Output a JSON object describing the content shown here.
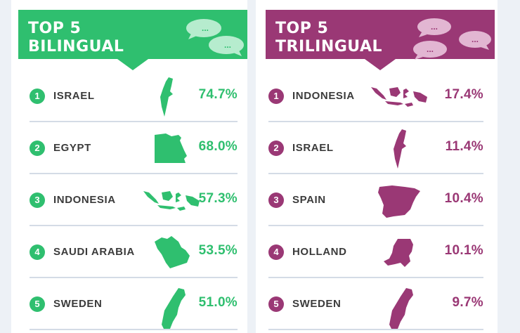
{
  "colors": {
    "green": "#2fbf6f",
    "purple": "#9a3875",
    "divider": "#d4dbe6"
  },
  "bilingual": {
    "title_line1": "TOP 5",
    "title_line2": "BILINGUAL",
    "bubble_text": "...",
    "items": [
      {
        "rank": "1",
        "country": "ISRAEL",
        "percent": "74.7%",
        "icon": "israel-map-icon"
      },
      {
        "rank": "2",
        "country": "EGYPT",
        "percent": "68.0%",
        "icon": "egypt-map-icon"
      },
      {
        "rank": "3",
        "country": "INDONESIA",
        "percent": "57.3%",
        "icon": "indonesia-map-icon"
      },
      {
        "rank": "4",
        "country": "SAUDI ARABIA",
        "percent": "53.5%",
        "icon": "saudi-arabia-map-icon"
      },
      {
        "rank": "5",
        "country": "SWEDEN",
        "percent": "51.0%",
        "icon": "sweden-map-icon"
      }
    ]
  },
  "trilingual": {
    "title_line1": "TOP 5",
    "title_line2": "TRILINGUAL",
    "bubble_text": "...",
    "items": [
      {
        "rank": "1",
        "country": "INDONESIA",
        "percent": "17.4%",
        "icon": "indonesia-map-icon"
      },
      {
        "rank": "2",
        "country": "ISRAEL",
        "percent": "11.4%",
        "icon": "israel-map-icon"
      },
      {
        "rank": "3",
        "country": "SPAIN",
        "percent": "10.4%",
        "icon": "spain-map-icon"
      },
      {
        "rank": "4",
        "country": "HOLLAND",
        "percent": "10.1%",
        "icon": "holland-map-icon"
      },
      {
        "rank": "5",
        "country": "SWEDEN",
        "percent": "9.7%",
        "icon": "sweden-map-icon"
      }
    ]
  }
}
